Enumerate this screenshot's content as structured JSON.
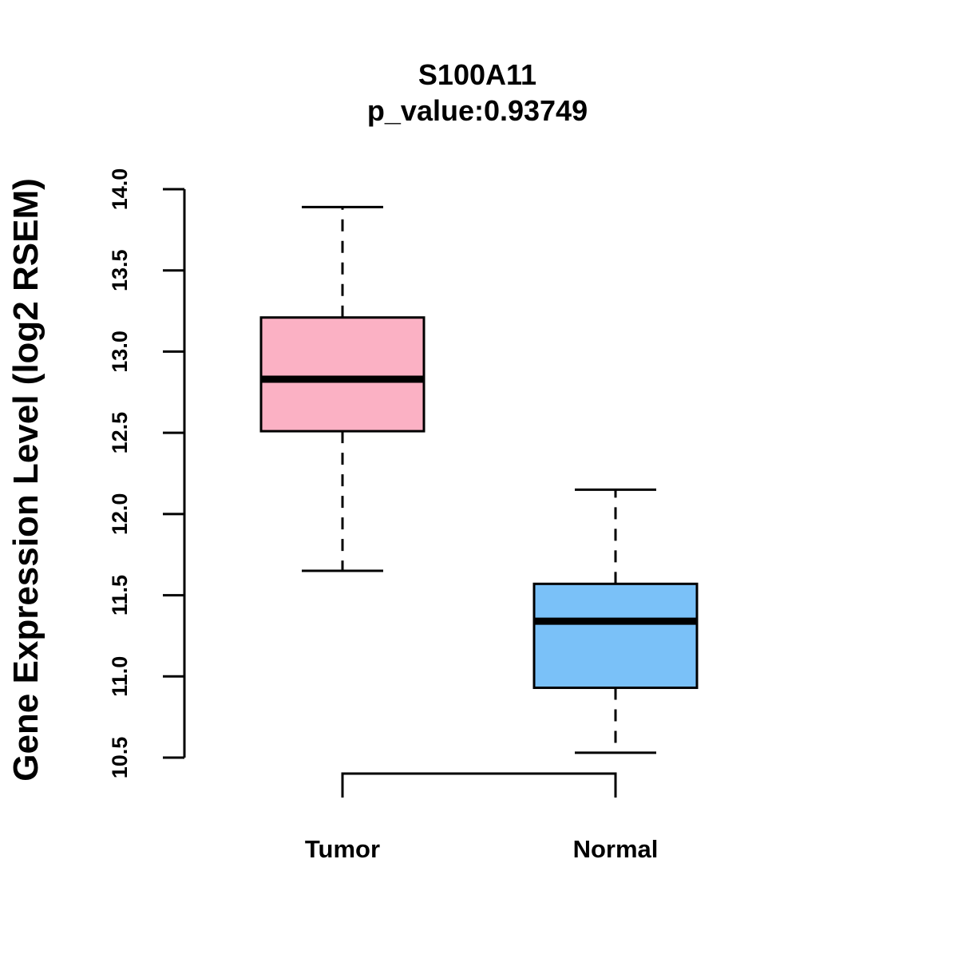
{
  "title": "S100A11",
  "subtitle": "p_value:0.93749",
  "chart_data": {
    "type": "box",
    "title": "S100A11",
    "subtitle": "p_value:0.93749",
    "ylabel": "Gene Expression Level (log2 RSEM)",
    "xlabel": "",
    "ylim": [
      10.5,
      14.0
    ],
    "yticks": [
      "10.5",
      "11.0",
      "11.5",
      "12.0",
      "12.5",
      "13.0",
      "13.5",
      "14.0"
    ],
    "categories": [
      "Tumor",
      "Normal"
    ],
    "boxes": [
      {
        "name": "Tumor",
        "color": "#FBB1C4",
        "whisker_low": 11.65,
        "q1": 12.51,
        "median": 12.83,
        "q3": 13.21,
        "whisker_high": 13.89
      },
      {
        "name": "Normal",
        "color": "#7AC1F8",
        "whisker_low": 10.53,
        "q1": 10.93,
        "median": 11.34,
        "q3": 11.57,
        "whisker_high": 12.15
      }
    ],
    "comparison_bracket": [
      "Tumor",
      "Normal"
    ],
    "grid": false
  }
}
